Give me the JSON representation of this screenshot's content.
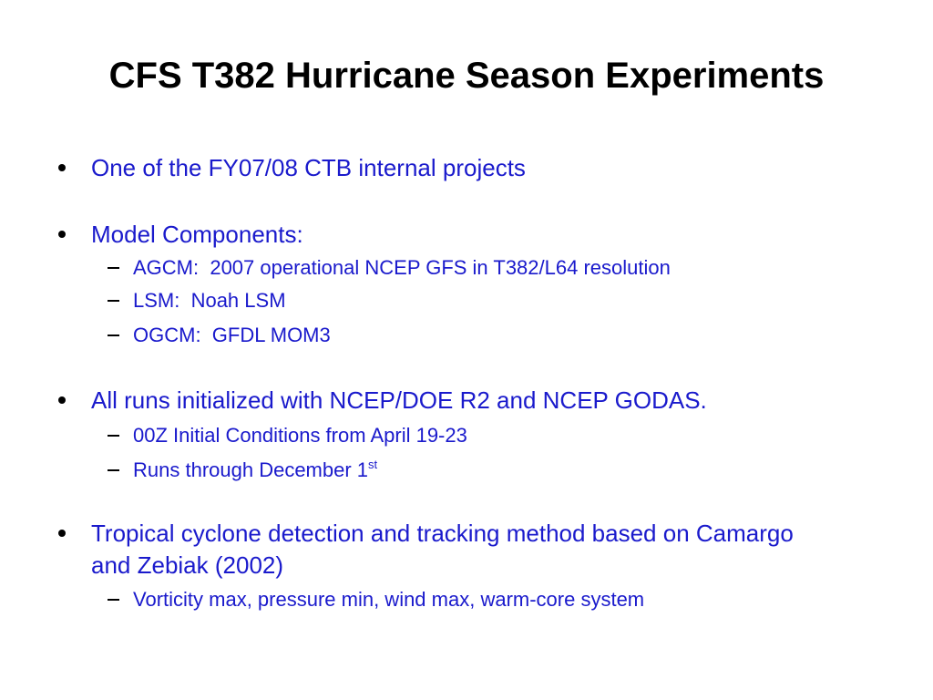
{
  "title": "CFS T382 Hurricane Season Experiments",
  "bullets": [
    {
      "text": "One of the FY07/08 CTB internal projects"
    },
    {
      "text": "Model Components:",
      "sub": [
        {
          "text": "AGCM:  2007 operational NCEP GFS in T382/L64 resolution"
        },
        {
          "text": "LSM:  Noah LSM"
        },
        {
          "text": "OGCM:  GFDL MOM3"
        }
      ]
    },
    {
      "text": "All runs initialized with NCEP/DOE R2 and NCEP GODAS.",
      "sub": [
        {
          "text": "00Z Initial Conditions from April 19-23"
        },
        {
          "text": "Runs through December 1",
          "superscript": "st"
        }
      ]
    },
    {
      "text": "Tropical cyclone detection and tracking method based on Camargo and Zebiak (2002)",
      "sub": [
        {
          "text": "Vorticity max, pressure min, wind max, warm-core system"
        }
      ]
    }
  ]
}
